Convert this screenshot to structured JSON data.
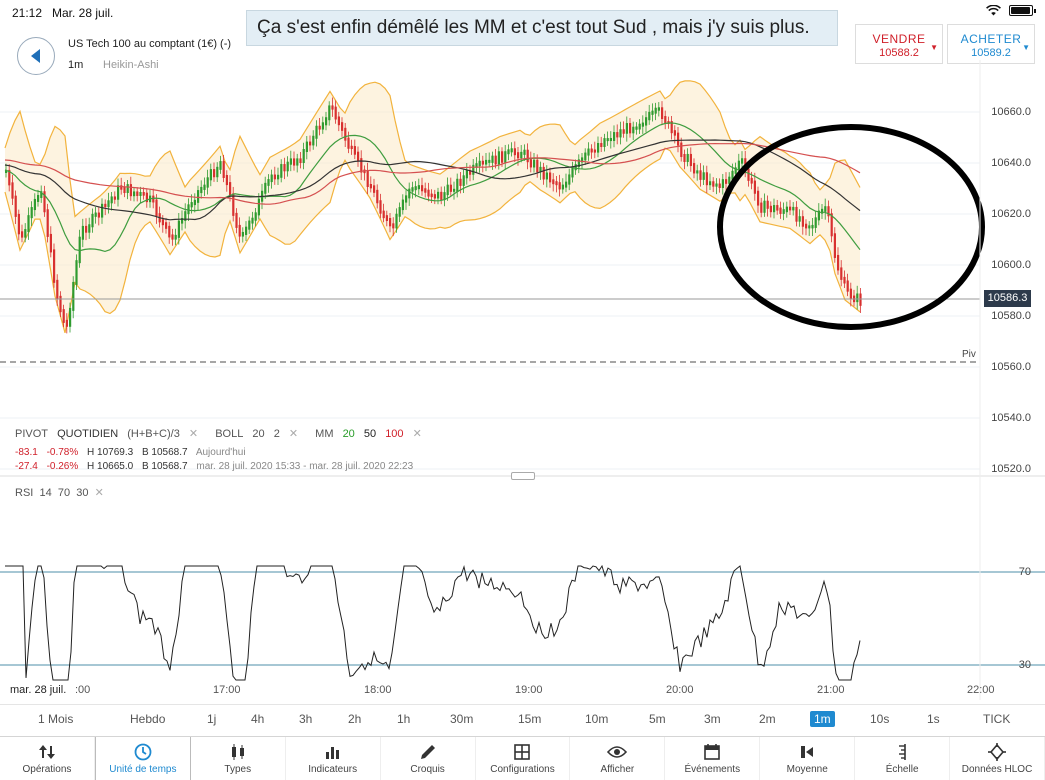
{
  "status": {
    "time": "21:12",
    "date": "Mar. 28 juil."
  },
  "caption": "Ça s'est enfin démêlé les MM et c'est tout Sud , mais j'y suis plus.",
  "header": {
    "instrument": "US Tech 100 au comptant (1€) (-)",
    "timeframe": "1m",
    "chart_type": "Heikin-Ashi"
  },
  "sell": {
    "label": "VENDRE",
    "price": "10588.2"
  },
  "buy": {
    "label": "ACHETER",
    "price": "10589.2"
  },
  "price_axis": [
    "10660.0",
    "10640.0",
    "10620.0",
    "10600.0",
    "10580.0",
    "10560.0",
    "10540.0",
    "10520.0"
  ],
  "last_price": "10586.3",
  "piv_label": "Piv",
  "indicators": {
    "pivot": "PIVOT",
    "pivot_type": "QUOTIDIEN",
    "pivot_formula": "(H+B+C)/3",
    "boll": "BOLL",
    "boll_p1": "20",
    "boll_p2": "2",
    "mm": "MM",
    "mm_20": "20",
    "mm_50": "50",
    "mm_100": "100"
  },
  "stats_row1": {
    "change": "-83.1",
    "pct": "-0.78%",
    "high": "H 10769.3",
    "low": "B 10568.7",
    "period": "Aujourd'hui"
  },
  "stats_row2": {
    "change": "-27.4",
    "pct": "-0.26%",
    "high": "H 10665.0",
    "low": "B 10568.7",
    "period": "mar. 28 juil. 2020 15:33 - mar. 28 juil. 2020 22:23"
  },
  "rsi": {
    "label": "RSI",
    "p1": "14",
    "p2": "70",
    "p3": "30",
    "level_high": "70",
    "level_low": "30"
  },
  "time_axis": [
    "mar. 28 juil.",
    ":00",
    "17:00",
    "18:00",
    "19:00",
    "20:00",
    "21:00",
    "22:00"
  ],
  "timeframes": [
    "1 Mois",
    "Hebdo",
    "1j",
    "4h",
    "3h",
    "2h",
    "1h",
    "30m",
    "15m",
    "10m",
    "5m",
    "3m",
    "2m",
    "1m",
    "10s",
    "1s",
    "TICK"
  ],
  "active_timeframe": "1m",
  "toolbar": [
    "Opérations",
    "Unité de temps",
    "Types",
    "Indicateurs",
    "Croquis",
    "Configurations",
    "Afficher",
    "Événements",
    "Moyenne",
    "Échelle",
    "Données HLOC"
  ],
  "colors": {
    "accent": "#1f8ad0",
    "sell": "#d0202a",
    "up": "#2a9d2a",
    "down": "#d0202a",
    "boll": "#f2b33d"
  }
}
